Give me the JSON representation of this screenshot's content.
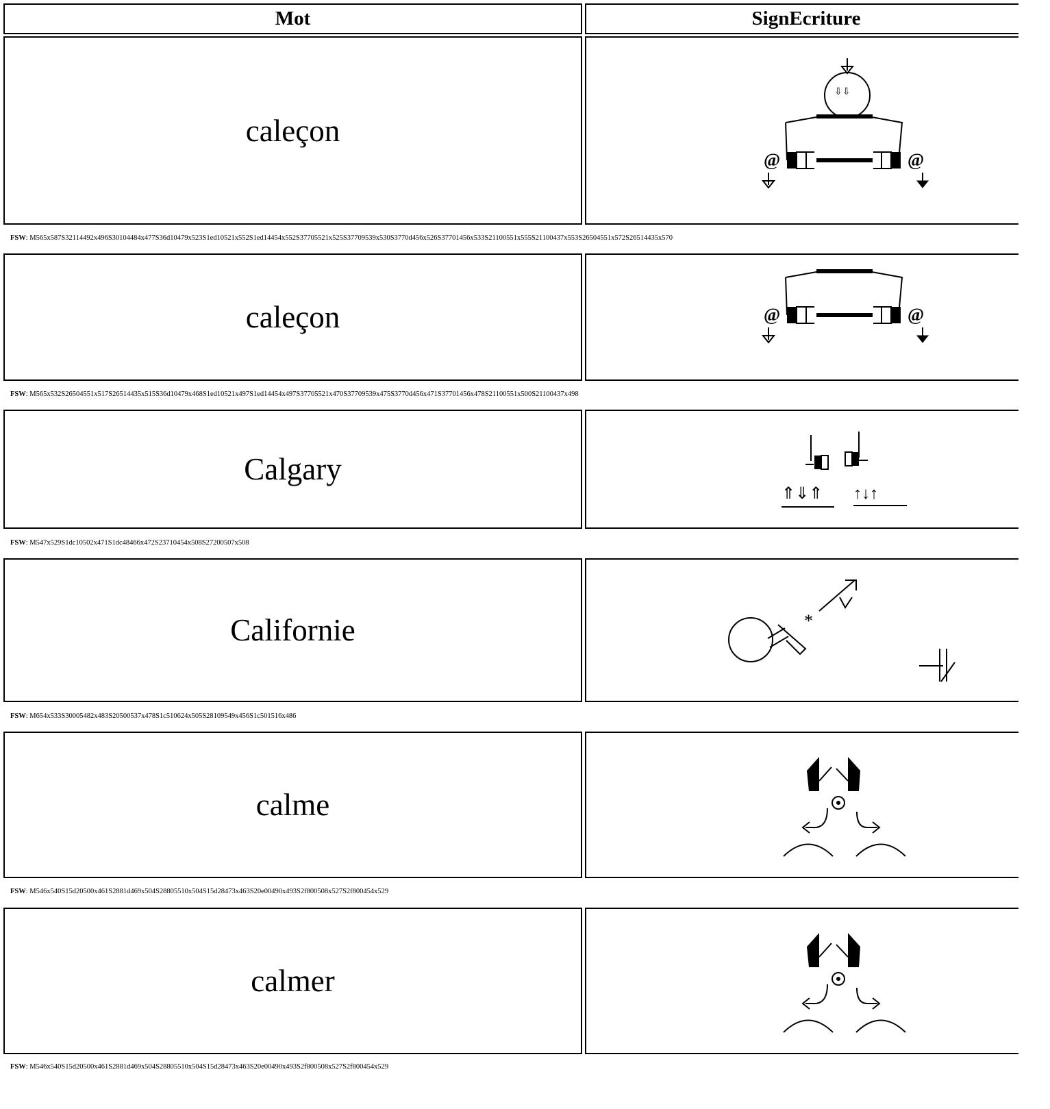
{
  "table": {
    "headers": [
      "Mot",
      "SignEcriture"
    ],
    "rows": [
      {
        "word": "caleçon",
        "fsw_label": "FSW",
        "fsw": ": M565x587S32114492x496S30104484x477S36d10479x523S1ed10521x552S1ed14454x552S37705521x525S37709539x530S3770d456x526S37701456x533S21100551x555S21100437x553S26504551x572S26514435x570"
      },
      {
        "word": "caleçon",
        "fsw_label": "FSW",
        "fsw": ": M565x532S26504551x517S26514435x515S36d10479x468S1ed10521x497S1ed14454x497S37705521x470S37709539x475S3770d456x471S37701456x478S21100551x500S21100437x498"
      },
      {
        "word": "Calgary",
        "fsw_label": "FSW",
        "fsw": ": M547x529S1dc10502x471S1dc48466x472S23710454x508S27200507x508"
      },
      {
        "word": "Californie",
        "fsw_label": "FSW",
        "fsw": ": M654x533S30005482x483S20500537x478S1c510624x505S28109549x456S1c501516x486"
      },
      {
        "word": "calme",
        "fsw_label": "FSW",
        "fsw": ": M546x540S15d20500x461S2881d469x504S28805510x504S15d28473x463S20e00490x493S2f800508x527S2f800454x529"
      },
      {
        "word": "calmer",
        "fsw_label": "FSW",
        "fsw": ": M546x540S15d20500x461S2881d469x504S28805510x504S15d28473x463S20e00490x493S2f800508x527S2f800454x529"
      }
    ]
  }
}
